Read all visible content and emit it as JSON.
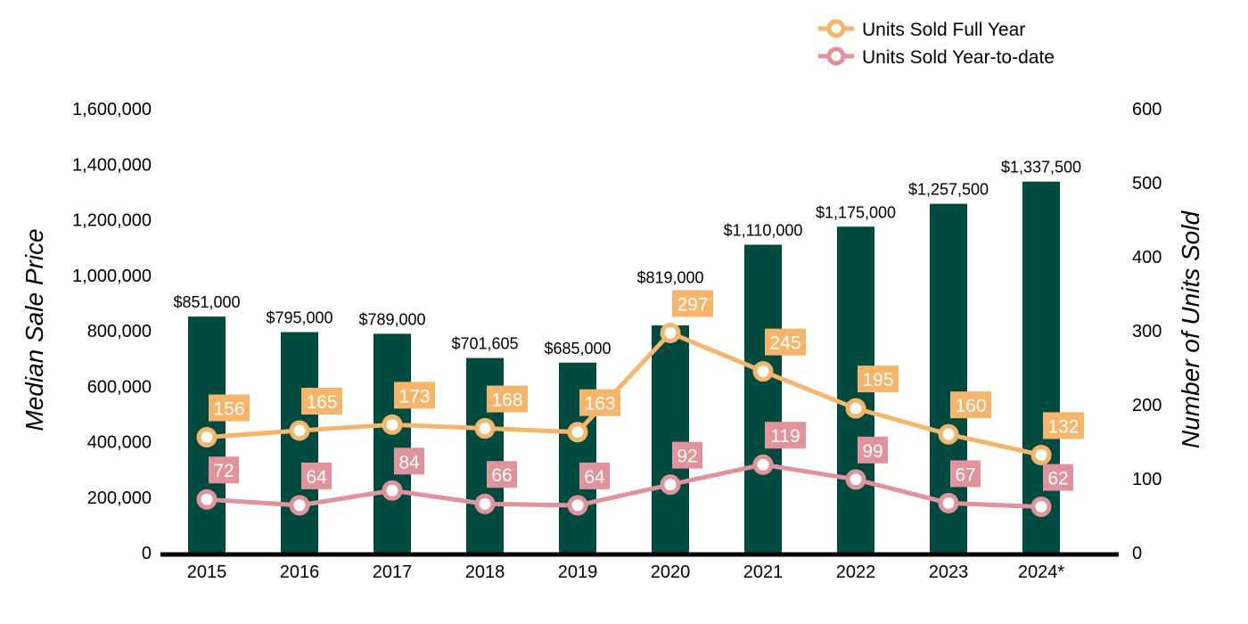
{
  "chart_data": {
    "type": "bar+line",
    "categories": [
      "2015",
      "2016",
      "2017",
      "2018",
      "2019",
      "2020",
      "2021",
      "2022",
      "2023",
      "2024*"
    ],
    "bars": {
      "axis": "left",
      "values": [
        851000,
        795000,
        789000,
        701605,
        685000,
        819000,
        1110000,
        1175000,
        1257500,
        1337500
      ],
      "labels": [
        "$851,000",
        "$795,000",
        "$789,000",
        "$701,605",
        "$685,000",
        "$819,000",
        "$1,110,000",
        "$1,175,000",
        "$1,257,500",
        "$1,337,500"
      ],
      "color": "#004a3f"
    },
    "series": [
      {
        "name": "Units Sold Full Year",
        "axis": "right",
        "values": [
          156,
          165,
          173,
          168,
          163,
          297,
          245,
          195,
          160,
          132
        ],
        "color": "#f5b66b"
      },
      {
        "name": "Units Sold Year-to-date",
        "axis": "right",
        "values": [
          72,
          64,
          84,
          66,
          64,
          92,
          119,
          99,
          67,
          62
        ],
        "color": "#e0939a"
      }
    ],
    "ylabel": "Median Sale Price",
    "y2label": "Number of Units Sold",
    "ylim": [
      0,
      1600000
    ],
    "y2lim": [
      0,
      600
    ],
    "yticks": [
      "0",
      "200,000",
      "400,000",
      "600,000",
      "800,000",
      "1,000,000",
      "1,200,000",
      "1,400,000",
      "1,600,000"
    ],
    "y2ticks": [
      "0",
      "100",
      "200",
      "300",
      "400",
      "500",
      "600"
    ],
    "legend": "top-right",
    "grid": false
  }
}
